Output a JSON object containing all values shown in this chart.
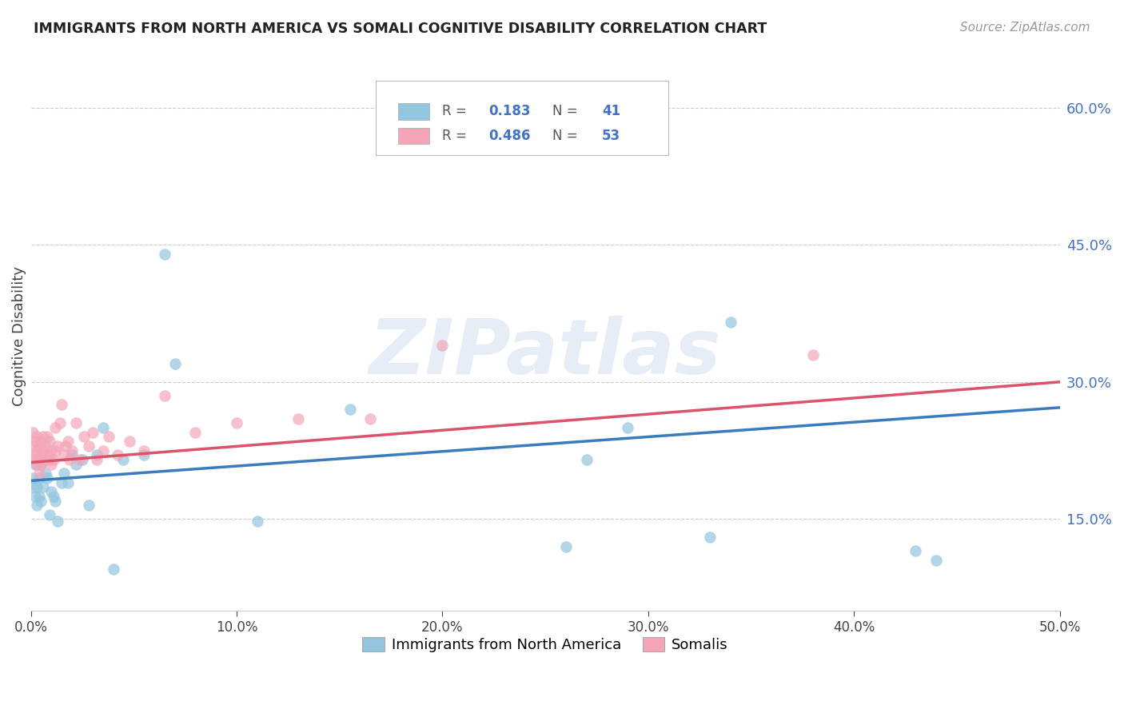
{
  "title": "IMMIGRANTS FROM NORTH AMERICA VS SOMALI COGNITIVE DISABILITY CORRELATION CHART",
  "source": "Source: ZipAtlas.com",
  "ylabel": "Cognitive Disability",
  "ylabel_right_ticks": [
    "60.0%",
    "45.0%",
    "30.0%",
    "15.0%"
  ],
  "ylabel_right_vals": [
    0.6,
    0.45,
    0.3,
    0.15
  ],
  "xlim": [
    0.0,
    0.5
  ],
  "ylim": [
    0.05,
    0.65
  ],
  "watermark": "ZIPatlas",
  "legend1_label": "Immigrants from North America",
  "legend2_label": "Somalis",
  "r1": 0.183,
  "n1": 41,
  "r2": 0.486,
  "n2": 53,
  "color_blue": "#92c5de",
  "color_pink": "#f4a6b8",
  "line_blue": "#3a7abf",
  "line_pink": "#d9536a",
  "blue_x": [
    0.001,
    0.001,
    0.002,
    0.002,
    0.003,
    0.003,
    0.004,
    0.004,
    0.005,
    0.005,
    0.006,
    0.007,
    0.008,
    0.009,
    0.01,
    0.011,
    0.012,
    0.013,
    0.015,
    0.016,
    0.018,
    0.02,
    0.022,
    0.025,
    0.028,
    0.032,
    0.035,
    0.04,
    0.045,
    0.055,
    0.065,
    0.07,
    0.11,
    0.155,
    0.26,
    0.27,
    0.29,
    0.33,
    0.34,
    0.43,
    0.44
  ],
  "blue_y": [
    0.195,
    0.185,
    0.21,
    0.175,
    0.185,
    0.165,
    0.195,
    0.175,
    0.21,
    0.17,
    0.185,
    0.2,
    0.195,
    0.155,
    0.18,
    0.175,
    0.17,
    0.148,
    0.19,
    0.2,
    0.19,
    0.22,
    0.21,
    0.215,
    0.165,
    0.22,
    0.25,
    0.095,
    0.215,
    0.22,
    0.44,
    0.32,
    0.148,
    0.27,
    0.12,
    0.215,
    0.25,
    0.13,
    0.365,
    0.115,
    0.105
  ],
  "pink_x": [
    0.001,
    0.001,
    0.001,
    0.002,
    0.002,
    0.003,
    0.003,
    0.003,
    0.004,
    0.004,
    0.004,
    0.005,
    0.005,
    0.005,
    0.006,
    0.006,
    0.007,
    0.007,
    0.008,
    0.008,
    0.009,
    0.009,
    0.01,
    0.01,
    0.011,
    0.012,
    0.012,
    0.013,
    0.014,
    0.015,
    0.016,
    0.017,
    0.018,
    0.019,
    0.02,
    0.022,
    0.024,
    0.026,
    0.028,
    0.03,
    0.032,
    0.035,
    0.038,
    0.042,
    0.048,
    0.055,
    0.065,
    0.08,
    0.1,
    0.13,
    0.165,
    0.2,
    0.38
  ],
  "pink_y": [
    0.215,
    0.23,
    0.245,
    0.22,
    0.235,
    0.21,
    0.225,
    0.24,
    0.215,
    0.23,
    0.2,
    0.22,
    0.235,
    0.21,
    0.225,
    0.24,
    0.215,
    0.23,
    0.22,
    0.24,
    0.215,
    0.235,
    0.21,
    0.225,
    0.215,
    0.25,
    0.225,
    0.23,
    0.255,
    0.275,
    0.22,
    0.23,
    0.235,
    0.215,
    0.225,
    0.255,
    0.215,
    0.24,
    0.23,
    0.245,
    0.215,
    0.225,
    0.24,
    0.22,
    0.235,
    0.225,
    0.285,
    0.245,
    0.255,
    0.26,
    0.26,
    0.34,
    0.33
  ],
  "blue_line_x": [
    0.0,
    0.5
  ],
  "blue_line_y": [
    0.192,
    0.272
  ],
  "pink_line_x": [
    0.0,
    0.5
  ],
  "pink_line_y": [
    0.212,
    0.3
  ]
}
